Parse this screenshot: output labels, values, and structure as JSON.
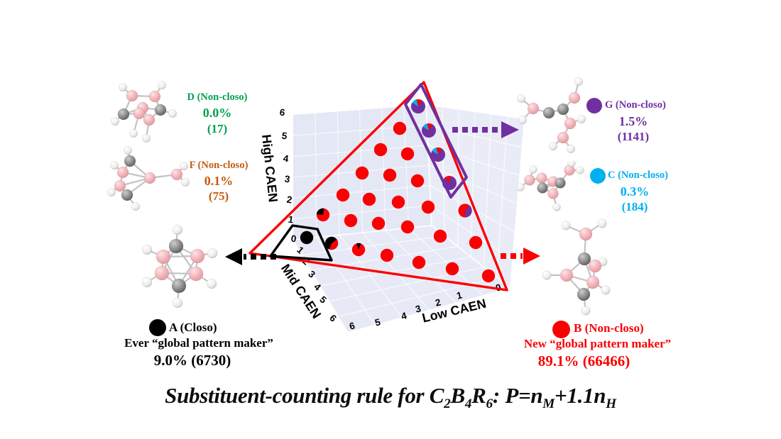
{
  "colors": {
    "red": "#FB0000",
    "black": "#000000",
    "purple": "#7030A0",
    "cyan": "#00B0F0",
    "green": "#00A050",
    "orange": "#C55A11",
    "panel": "#E6E9F5"
  },
  "plot": {
    "axes": {
      "high": {
        "label": "High CAEN",
        "ticks": [
          "6",
          "5",
          "4",
          "3",
          "2",
          "1",
          "0"
        ]
      },
      "mid": {
        "label": "Mid CAEN",
        "ticks": [
          "1",
          "2",
          "3",
          "4",
          "5",
          "6"
        ]
      },
      "low": {
        "label": "Low CAEN",
        "ticks": [
          "6",
          "5",
          "4",
          "3",
          "2",
          "1",
          "0"
        ]
      }
    }
  },
  "chart_data": {
    "type": "scatter",
    "projection": "3d",
    "axes": [
      {
        "name": "High CAEN",
        "range": [
          0,
          6
        ]
      },
      {
        "name": "Mid CAEN",
        "range": [
          0,
          6
        ]
      },
      {
        "name": "Low CAEN",
        "range": [
          0,
          6
        ]
      }
    ],
    "legend_categories": [
      {
        "key": "A",
        "label": "A (Closo)",
        "color": "#000000",
        "share": "9.0%",
        "count": 6730
      },
      {
        "key": "B",
        "label": "B (Non-closo)",
        "color": "#FB0000",
        "share": "89.1%",
        "count": 66466
      },
      {
        "key": "C",
        "label": "C (Non-closo)",
        "color": "#00B0F0",
        "share": "0.3%",
        "count": 184
      },
      {
        "key": "D",
        "label": "D (Non-closo)",
        "color": "#00A050",
        "share": "0.0%",
        "count": 17
      },
      {
        "key": "F",
        "label": "F (Non-closo)",
        "color": "#C55A11",
        "share": "0.1%",
        "count": 75
      },
      {
        "key": "G",
        "label": "G (Non-closo)",
        "color": "#7030A0",
        "share": "1.5%",
        "count": 1141
      }
    ],
    "points": [
      [
        589,
        150,
        "G"
      ],
      [
        604,
        184,
        "G"
      ],
      [
        617,
        218,
        "G"
      ],
      [
        633,
        258,
        "G2"
      ],
      [
        655,
        297,
        "BG"
      ],
      [
        563,
        181,
        "B"
      ],
      [
        536,
        211,
        "B"
      ],
      [
        574,
        217,
        "B"
      ],
      [
        510,
        244,
        "B"
      ],
      [
        549,
        247,
        "B"
      ],
      [
        588,
        255,
        "B"
      ],
      [
        483,
        275,
        "B"
      ],
      [
        520,
        281,
        "B"
      ],
      [
        561,
        285,
        "B"
      ],
      [
        603,
        292,
        "B"
      ],
      [
        455,
        303,
        "BA"
      ],
      [
        494,
        311,
        "B"
      ],
      [
        533,
        315,
        "B"
      ],
      [
        574,
        320,
        "B"
      ],
      [
        620,
        333,
        "B"
      ],
      [
        670,
        342,
        "B"
      ],
      [
        432,
        335,
        "A"
      ],
      [
        467,
        343,
        "AB"
      ],
      [
        505,
        352,
        "Bb"
      ],
      [
        545,
        360,
        "B"
      ],
      [
        590,
        370,
        "B"
      ],
      [
        637,
        379,
        "B"
      ],
      [
        688,
        389,
        "B"
      ]
    ]
  },
  "legend": {
    "d": {
      "name": "D (Non-closo)",
      "percent": "0.0%",
      "count": "(17)"
    },
    "f": {
      "name": "F (Non-closo)",
      "percent": "0.1%",
      "count": "(75)"
    },
    "g": {
      "name": "G (Non-closo)",
      "percent": "1.5%",
      "count": "(1141)"
    },
    "c": {
      "name": "C (Non-closo)",
      "percent": "0.3%",
      "count": "(184)"
    },
    "a": {
      "name": "A (Closo)",
      "line2": "Ever “global pattern maker”",
      "line3": "9.0% (6730)"
    },
    "b": {
      "name": "B (Non-closo)",
      "line2": "New “global pattern maker”",
      "line3": "89.1% (66466)"
    }
  },
  "title_parts": [
    {
      "t": "Substituent-counting rule for C",
      "sub": false
    },
    {
      "t": "2",
      "sub": true
    },
    {
      "t": "B",
      "sub": false
    },
    {
      "t": "4",
      "sub": true
    },
    {
      "t": "R",
      "sub": false
    },
    {
      "t": "6",
      "sub": true
    },
    {
      "t": ": P=n",
      "sub": false
    },
    {
      "t": "M",
      "sub": true
    },
    {
      "t": "+1.1n",
      "sub": false
    },
    {
      "t": "H",
      "sub": true
    }
  ]
}
